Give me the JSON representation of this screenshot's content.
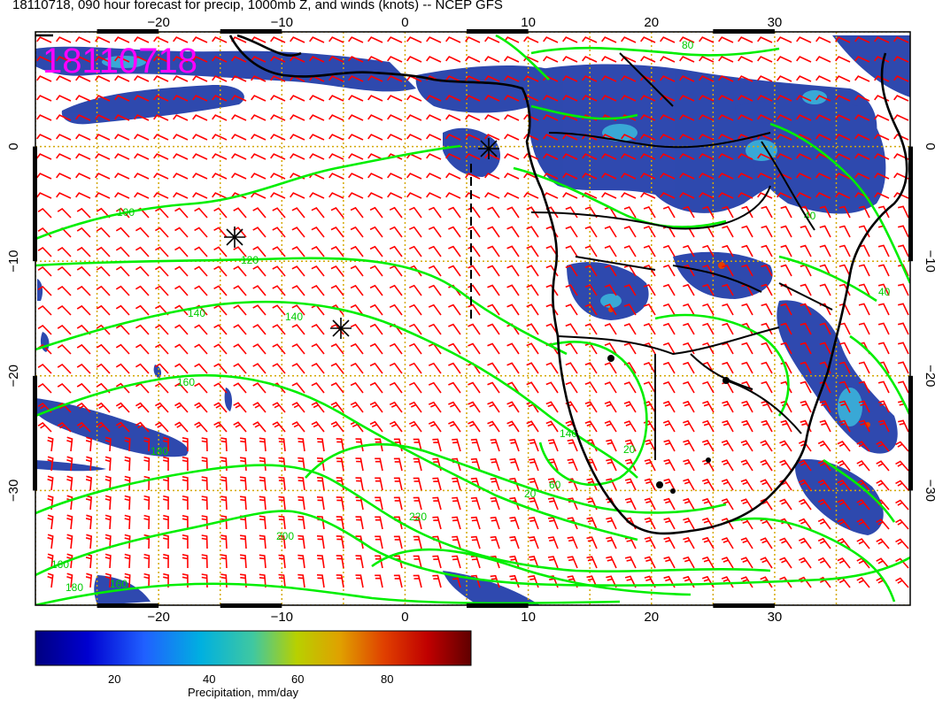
{
  "title": "18110718, 090 hour forecast for precip, 1000mb Z, and winds (knots) -- NCEP GFS",
  "datestamp": "18110718",
  "map": {
    "lon_range": [
      -30,
      41
    ],
    "lat_range": [
      -40,
      10
    ],
    "lon_ticks": [
      -20,
      -10,
      0,
      10,
      20,
      30
    ],
    "lat_ticks": [
      0,
      -10,
      -20,
      -30
    ],
    "lon_tick_labels": [
      "−20",
      "−10",
      "0",
      "10",
      "20",
      "30"
    ],
    "lat_tick_labels": [
      "0",
      "−10",
      "−20",
      "−30"
    ],
    "grid": "dotted"
  },
  "contour_labels": [
    "80",
    "100",
    "120",
    "140",
    "140",
    "160",
    "180",
    "200",
    "220",
    "160",
    "180",
    "160",
    "140",
    "20",
    "20",
    "40",
    "40",
    "60"
  ],
  "colorbar": {
    "label": "Precipitation, mm/day",
    "ticks": [
      "20",
      "40",
      "60",
      "80"
    ],
    "range": [
      0,
      100
    ]
  },
  "colors": {
    "barbs": "#ff0000",
    "contours": "#00ee00",
    "coast": "#000000",
    "datestamp": "#ff00ff",
    "grid": "#d4a800"
  }
}
